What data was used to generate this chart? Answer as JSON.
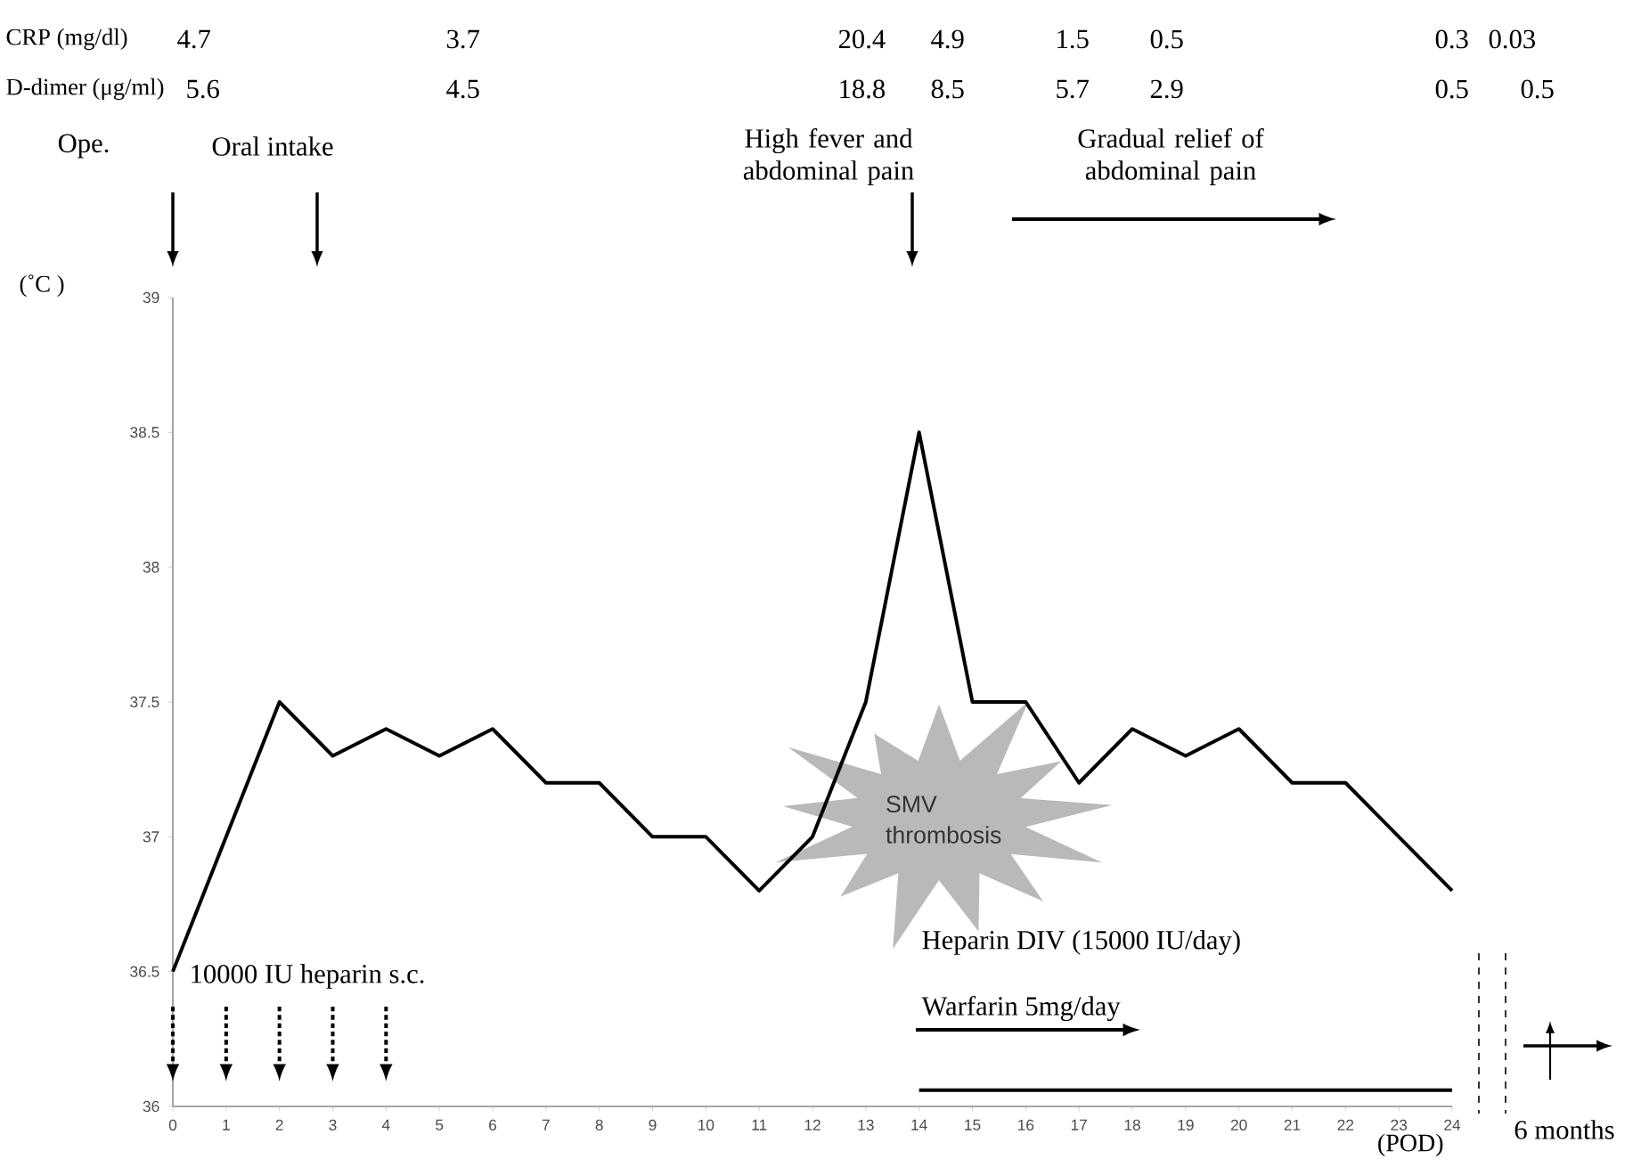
{
  "chart_data": {
    "type": "line",
    "ylabel": "(˚C )",
    "xlabel": "(POD)",
    "x": [
      0,
      1,
      2,
      3,
      4,
      5,
      6,
      7,
      8,
      9,
      10,
      11,
      12,
      13,
      14,
      15,
      16,
      17,
      18,
      19,
      20,
      21,
      22,
      23,
      24
    ],
    "series": [
      {
        "color": "#000000",
        "values": [
          36.5,
          37.0,
          37.5,
          37.3,
          37.4,
          37.3,
          37.4,
          37.2,
          37.2,
          37.0,
          37.0,
          36.8,
          37.0,
          37.5,
          38.5,
          37.5,
          37.5,
          37.2,
          37.4,
          37.3,
          37.4,
          37.2,
          37.2,
          37.0,
          36.8
        ]
      },
      {
        "type": "line",
        "color": "#000000",
        "x": [
          14,
          24
        ],
        "values": [
          36.06,
          36.06
        ]
      }
    ],
    "xlim": [
      0,
      24
    ],
    "ylim": [
      36,
      39
    ],
    "xticks": [
      0,
      1,
      2,
      3,
      4,
      5,
      6,
      7,
      8,
      9,
      10,
      11,
      12,
      13,
      14,
      15,
      16,
      17,
      18,
      19,
      20,
      21,
      22,
      23,
      24
    ],
    "yticks": [
      36,
      36.5,
      37,
      37.5,
      38,
      38.5,
      39
    ],
    "annotations": [
      "CRP (mg/dl)",
      "4.7",
      "3.7",
      "20.4",
      "4.9",
      "1.5",
      "0.5",
      "0.3",
      "0.03",
      "D-dimer (μg/ml)",
      "5.6",
      "4.5",
      "18.8",
      "8.5",
      "5.7",
      "2.9",
      "0.5",
      "0.5",
      "Ope.",
      "Oral intake",
      "High fever and abdominal pain",
      "Gradual relief of abdominal pain",
      "10000 IU heparin s.c.",
      "Heparin DIV (15000 IU/day)",
      "Warfarin 5mg/day",
      "SMV thrombosis",
      "6 months"
    ]
  }
}
